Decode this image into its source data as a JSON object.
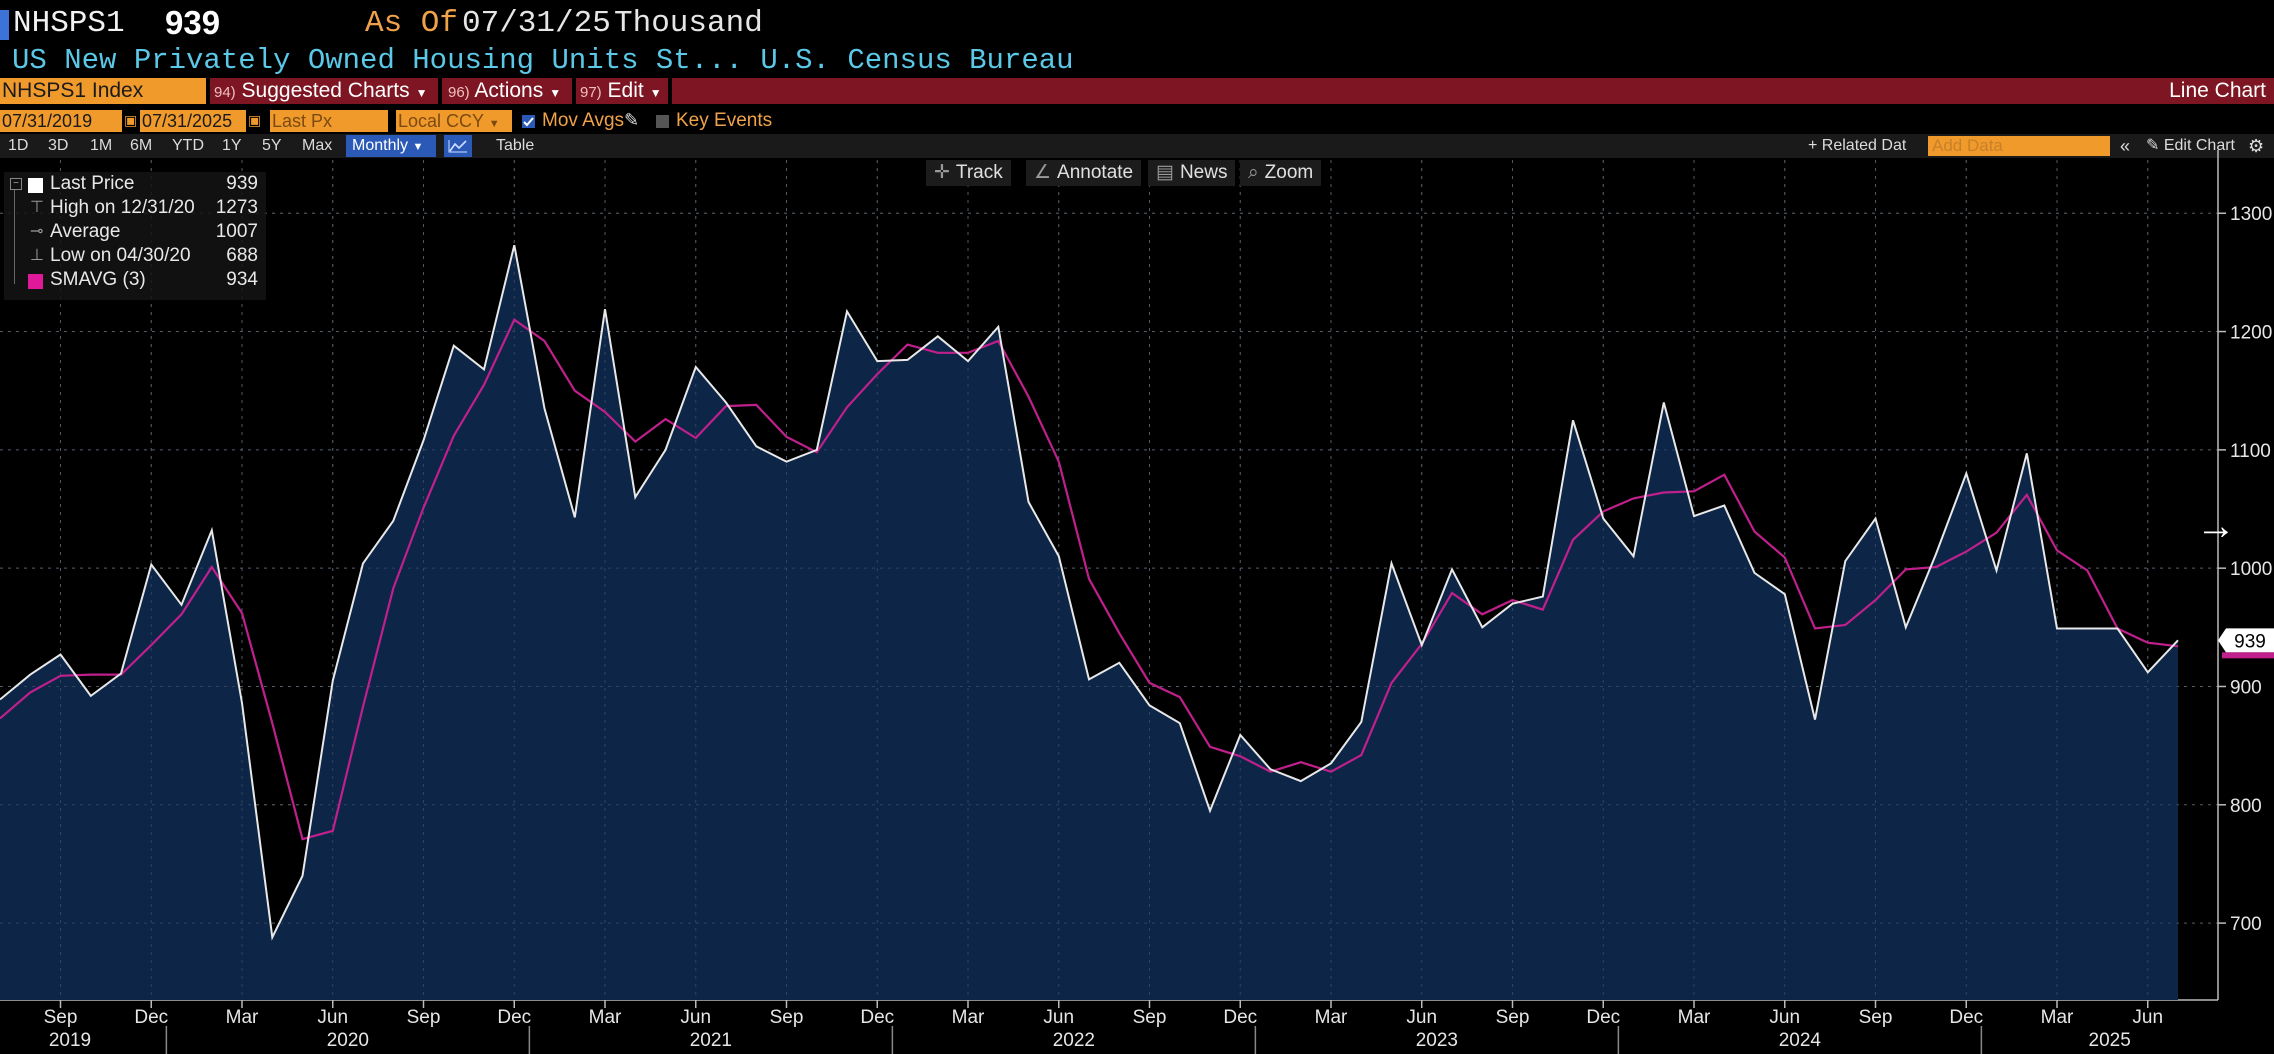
{
  "header": {
    "ticker": "NHSPS1",
    "last_value": "939",
    "as_of_label": "As Of",
    "as_of_date": "07/31/25",
    "unit": "Thousand",
    "description": "US New Privately Owned Housing Units St...  U.S. Census Bureau"
  },
  "menubar": {
    "index": "NHSPS1 Index",
    "suggested_num": "94)",
    "suggested": "Suggested Charts",
    "actions_num": "96)",
    "actions": "Actions",
    "edit_num": "97)",
    "edit": "Edit",
    "chart_type": "Line Chart"
  },
  "controls": {
    "start_date": "07/31/2019",
    "end_date": "07/31/2025",
    "field": "Last Px",
    "currency": "Local CCY",
    "mov_avgs": "Mov Avgs",
    "key_events": "Key Events"
  },
  "periods": [
    "1D",
    "3D",
    "1M",
    "6M",
    "YTD",
    "1Y",
    "5Y",
    "Max"
  ],
  "frequency": "Monthly",
  "table_label": "Table",
  "related_data": "+ Related Dat",
  "add_data_placeholder": "Add Data",
  "edit_chart": "Edit Chart",
  "toolbar": {
    "track": "Track",
    "annotate": "Annotate",
    "news": "News",
    "zoom": "Zoom"
  },
  "legend": {
    "last_price_label": "Last Price",
    "last_price_value": "939",
    "high_label": "High on 12/31/20",
    "high_value": "1273",
    "average_label": "Average",
    "average_value": "1007",
    "low_label": "Low on 04/30/20",
    "low_value": "688",
    "smavg_label": "SMAVG (3)",
    "smavg_value": "934"
  },
  "colors": {
    "price_line": "#e8e8e8",
    "area_fill": "#0d2547",
    "smavg_line": "#c0208c",
    "accent_orange": "#f09a2c",
    "menubar_red": "#7d1522"
  },
  "chart_data": {
    "type": "area",
    "frequency": "monthly",
    "x_start": "2019-07",
    "x_end": "2025-07",
    "yticks": [
      700,
      800,
      900,
      1000,
      1100,
      1200,
      1300
    ],
    "ylim": [
      635,
      1345
    ],
    "x_month_labels": [
      "Sep",
      "Dec",
      "Mar",
      "Jun",
      "Sep",
      "Dec",
      "Mar",
      "Jun",
      "Sep",
      "Dec",
      "Mar",
      "Jun",
      "Sep",
      "Dec",
      "Mar",
      "Jun",
      "Sep",
      "Dec",
      "Mar",
      "Jun",
      "Sep",
      "Dec",
      "Mar",
      "Jun"
    ],
    "x_year_labels": [
      "2019",
      "2020",
      "2021",
      "2022",
      "2023",
      "2024",
      "2025"
    ],
    "current_value_label": "939",
    "series": [
      {
        "name": "Last Price",
        "values": [
          889,
          910,
          927,
          892,
          911,
          1003,
          969,
          1032,
          886,
          688,
          740,
          905,
          1004,
          1040,
          1108,
          1188,
          1168,
          1273,
          1135,
          1043,
          1219,
          1060,
          1100,
          1170,
          1140,
          1103,
          1090,
          1100,
          1217,
          1175,
          1176,
          1196,
          1175,
          1204,
          1056,
          1010,
          906,
          920,
          884,
          869,
          795,
          859,
          830,
          820,
          835,
          870,
          1004,
          935,
          999,
          950,
          970,
          976,
          1125,
          1042,
          1010,
          1140,
          1044,
          1053,
          996,
          978,
          872,
          1006,
          1042,
          950,
          1012,
          1080,
          998,
          1097,
          949,
          949,
          949,
          912,
          939
        ]
      },
      {
        "name": "SMAVG (3)",
        "values": [
          873,
          895,
          909,
          910,
          910,
          935,
          961,
          1001,
          962,
          869,
          771,
          778,
          883,
          983,
          1051,
          1112,
          1155,
          1210,
          1192,
          1150,
          1132,
          1107,
          1126,
          1110,
          1137,
          1138,
          1111,
          1098,
          1136,
          1164,
          1189,
          1182,
          1182,
          1192,
          1145,
          1090,
          991,
          945,
          903,
          891,
          849,
          841,
          828,
          836,
          828,
          842,
          903,
          936,
          979,
          961,
          973,
          965,
          1024,
          1048,
          1059,
          1064,
          1065,
          1079,
          1031,
          1009,
          949,
          952,
          973,
          999,
          1001,
          1014,
          1030,
          1062,
          1015,
          998,
          949,
          937,
          934
        ]
      }
    ]
  }
}
